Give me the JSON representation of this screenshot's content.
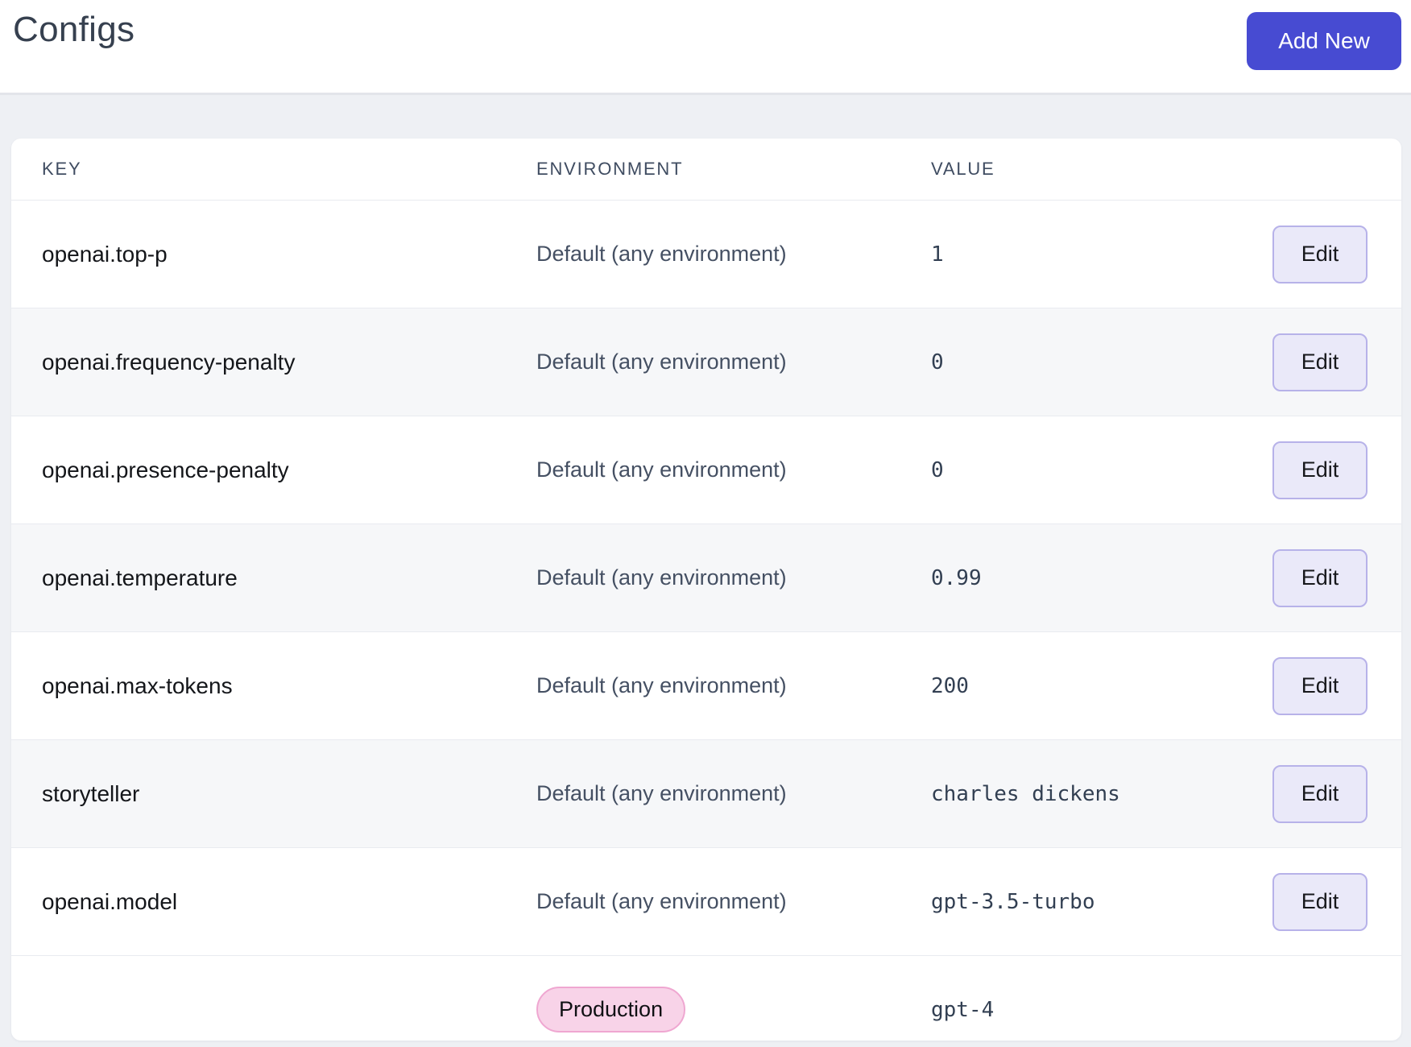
{
  "page": {
    "title": "Configs",
    "add_new_label": "Add New"
  },
  "table": {
    "columns": [
      "KEY",
      "ENVIRONMENT",
      "VALUE"
    ],
    "edit_label": "Edit",
    "rows": [
      {
        "key": "openai.top-p",
        "environment": "Default (any environment)",
        "value": "1"
      },
      {
        "key": "openai.frequency-penalty",
        "environment": "Default (any environment)",
        "value": "0"
      },
      {
        "key": "openai.presence-penalty",
        "environment": "Default (any environment)",
        "value": "0"
      },
      {
        "key": "openai.temperature",
        "environment": "Default (any environment)",
        "value": "0.99"
      },
      {
        "key": "openai.max-tokens",
        "environment": "Default (any environment)",
        "value": "200"
      },
      {
        "key": "storyteller",
        "environment": "Default (any environment)",
        "value": "charles dickens"
      },
      {
        "key": "openai.model",
        "environment": "Default (any environment)",
        "value": "gpt-3.5-turbo"
      },
      {
        "key": "",
        "environment": "Production",
        "value": "gpt-4"
      }
    ]
  },
  "colors": {
    "primary_button": "#474bd2",
    "edit_button_bg": "#eae9f9",
    "edit_button_border": "#b7b2e9",
    "production_badge_bg": "#f8d3e8",
    "production_badge_border": "#efa7d1",
    "page_background": "#eef0f4"
  }
}
